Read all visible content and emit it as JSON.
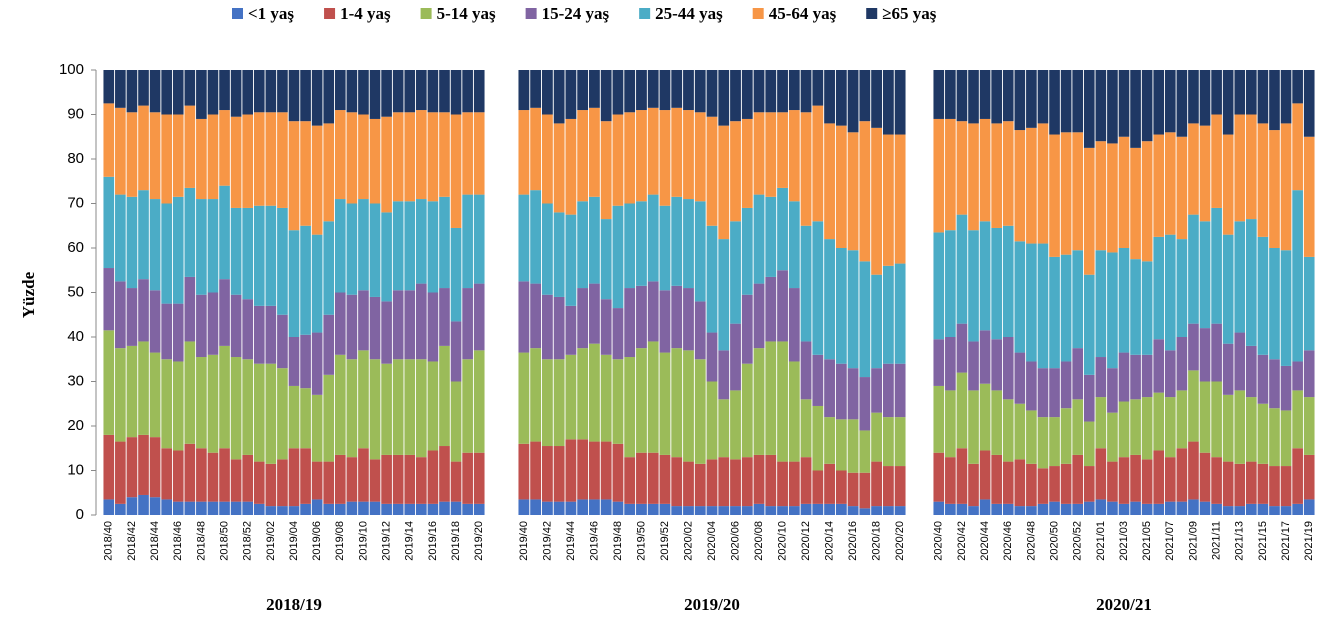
{
  "chart_data": [
    {
      "type": "stacked_bar",
      "title": "2018/19",
      "ylabel": "Yüzde",
      "ylim": [
        0,
        100
      ],
      "yticks": [
        0,
        10,
        20,
        30,
        40,
        50,
        60,
        70,
        80,
        90,
        100
      ],
      "categories": [
        "2018/40",
        null,
        "2018/42",
        null,
        "2018/44",
        null,
        "2018/46",
        null,
        "2018/48",
        null,
        "2018/50",
        null,
        "2018/52",
        null,
        "2019/02",
        null,
        "2019/04",
        null,
        "2019/06",
        null,
        "2019/08",
        null,
        "2019/10",
        null,
        "2019/12",
        null,
        "2019/14",
        null,
        "2019/16",
        null,
        "2019/18",
        null,
        "2019/20"
      ],
      "series": [
        {
          "name": "<1 yaş",
          "color": "#4472c4",
          "values": [
            3.5,
            2.5,
            4,
            4.5,
            4,
            3.5,
            3,
            3,
            3,
            3,
            3,
            3,
            3,
            2.5,
            2,
            2,
            2,
            2.5,
            3.5,
            2.5,
            2.5,
            3,
            3,
            3,
            2.5,
            2.5,
            2.5,
            2.5,
            2.5,
            3,
            3,
            2.5,
            2.5
          ]
        },
        {
          "name": "1-4 yaş",
          "color": "#c0504d",
          "values": [
            14.5,
            14,
            13.5,
            13.5,
            13.5,
            11.5,
            11.5,
            13,
            12,
            11,
            12,
            9.5,
            10.5,
            9.5,
            9.5,
            10.5,
            13,
            12.5,
            8.5,
            9.5,
            11,
            10,
            12,
            9.5,
            11,
            11,
            11,
            10.5,
            12,
            12.5,
            9,
            11.5,
            11.5
          ]
        },
        {
          "name": "5-14 yaş",
          "color": "#9bbb59",
          "values": [
            23.5,
            21,
            20.5,
            21,
            19,
            20,
            20,
            23,
            20.5,
            22,
            23,
            23,
            21.5,
            22,
            22.5,
            20.5,
            14,
            13.5,
            15,
            19.5,
            22.5,
            22,
            22,
            22.5,
            20.5,
            21.5,
            21.5,
            22,
            20,
            22.5,
            18,
            21,
            23
          ]
        },
        {
          "name": "15-24 yaş",
          "color": "#8064a2",
          "values": [
            14,
            15,
            13,
            14,
            14,
            12.5,
            13,
            14.5,
            14,
            14,
            15,
            14,
            13.5,
            13,
            13,
            12,
            11,
            12,
            14,
            13.5,
            14,
            14.5,
            13.5,
            14,
            14,
            15.5,
            15.5,
            17,
            15.5,
            13,
            13.5,
            16,
            15
          ]
        },
        {
          "name": "25-44 yaş",
          "color": "#4bacc6",
          "values": [
            20.5,
            19.5,
            20.5,
            20,
            20.5,
            22.5,
            24,
            20,
            21.5,
            21,
            21,
            19.5,
            20.5,
            22.5,
            22.5,
            24,
            24,
            24.5,
            22,
            21,
            21,
            20.5,
            20.5,
            21,
            20,
            20,
            20,
            19,
            20.5,
            20.5,
            21,
            21,
            20
          ]
        },
        {
          "name": "45-64 yaş",
          "color": "#f79646",
          "values": [
            16.5,
            19.5,
            19,
            19,
            19.5,
            20,
            18.5,
            18.5,
            18,
            19,
            17,
            20.5,
            21,
            21,
            21,
            21.5,
            24.5,
            23.5,
            24.5,
            22,
            20,
            20.5,
            19,
            19,
            21.5,
            20,
            20,
            20,
            20,
            19,
            25.5,
            18.5,
            18.5
          ]
        },
        {
          "name": "≥65 yaş",
          "color": "#1f3864",
          "values": [
            7.5,
            8.5,
            9.5,
            8,
            9.5,
            10,
            10,
            8,
            11,
            10,
            9,
            10.5,
            10,
            9.5,
            9.5,
            9.5,
            11.5,
            11.5,
            12.5,
            12,
            9,
            9.5,
            10,
            11,
            10.5,
            9.5,
            9.5,
            9,
            9.5,
            9.5,
            10,
            9.5,
            9.5
          ]
        }
      ]
    },
    {
      "type": "stacked_bar",
      "title": "2019/20",
      "categories": [
        "2019/40",
        null,
        "2019/42",
        null,
        "2019/44",
        null,
        "2019/46",
        null,
        "2019/48",
        null,
        "2019/50",
        null,
        "2019/52",
        null,
        "2020/02",
        null,
        "2020/04",
        null,
        "2020/06",
        null,
        "2020/08",
        null,
        "2020/10",
        null,
        "2020/12",
        null,
        "2020/14",
        null,
        "2020/16",
        null,
        "2020/18",
        null,
        "2020/20"
      ],
      "series": [
        {
          "values": [
            3.5,
            3.5,
            3,
            3,
            3,
            3.5,
            3.5,
            3.5,
            3,
            2.5,
            2.5,
            2.5,
            2.5,
            2,
            2,
            2,
            2,
            2,
            2,
            2,
            2.5,
            2,
            2,
            2,
            2.5,
            2.5,
            2.5,
            2.5,
            2,
            1.5,
            2,
            2,
            2
          ]
        },
        {
          "values": [
            12.5,
            13,
            12.5,
            12.5,
            14,
            13.5,
            13,
            13,
            13,
            10.5,
            11.5,
            11.5,
            11,
            11,
            10,
            9.5,
            10.5,
            11,
            10.5,
            11,
            11,
            11.5,
            10,
            10,
            10.5,
            7.5,
            9,
            7.5,
            7.5,
            8,
            10,
            9,
            9
          ]
        },
        {
          "values": [
            20.5,
            21,
            19.5,
            19.5,
            19,
            20.5,
            22,
            19.5,
            19,
            22.5,
            23.5,
            25,
            23,
            24.5,
            25,
            23.5,
            17.5,
            13,
            15.5,
            21,
            24,
            25.5,
            27,
            22.5,
            13,
            14.5,
            10.5,
            11.5,
            12,
            9.5,
            11,
            11,
            11
          ]
        },
        {
          "values": [
            16,
            14.5,
            14.5,
            14,
            11,
            13.5,
            13.5,
            12.5,
            11.5,
            15.5,
            14,
            13.5,
            14,
            14,
            14,
            13,
            11,
            11,
            15,
            15.5,
            14.5,
            14.5,
            16,
            16.5,
            13,
            11.5,
            13,
            12.5,
            11.5,
            12,
            10,
            12,
            12
          ]
        },
        {
          "values": [
            19.5,
            21,
            20.5,
            19,
            20.5,
            19.5,
            19.5,
            18,
            23,
            19,
            19,
            19.5,
            19,
            20,
            20,
            22.5,
            24,
            25,
            23,
            19.5,
            20,
            18,
            18.5,
            19.5,
            26,
            30,
            27,
            26,
            26.5,
            26,
            21,
            22,
            22.5
          ]
        },
        {
          "values": [
            19,
            18.5,
            20,
            20,
            21.5,
            20.5,
            20,
            22,
            20.5,
            20.5,
            20.5,
            19.5,
            21.5,
            20,
            20,
            20,
            24.5,
            25.5,
            22.5,
            20,
            18.5,
            19,
            17,
            20.5,
            25.5,
            26,
            26,
            27.5,
            26.5,
            31.5,
            33,
            29.5,
            29
          ]
        },
        {
          "values": [
            9,
            8.5,
            10,
            12,
            11,
            9,
            8.5,
            11.5,
            10,
            9.5,
            9,
            8.5,
            9,
            8.5,
            9,
            9.5,
            10.5,
            12.5,
            11.5,
            11,
            9.5,
            9.5,
            9.5,
            9,
            9.5,
            8,
            12,
            12.5,
            14,
            11.5,
            13,
            14.5,
            14.5
          ]
        }
      ]
    },
    {
      "type": "stacked_bar",
      "title": "2020/21",
      "categories": [
        "2020/40",
        null,
        "2020/42",
        null,
        "2020/44",
        null,
        "2020/46",
        null,
        "2020/48",
        null,
        "2020/50",
        null,
        "2020/52",
        null,
        "2021/01",
        null,
        "2021/03",
        null,
        "2021/05",
        null,
        "2021/07",
        null,
        "2021/09",
        null,
        "2021/11",
        null,
        "2021/13",
        null,
        "2021/15",
        null,
        "2021/17",
        null,
        "2021/19"
      ],
      "series": [
        {
          "values": [
            3,
            2.5,
            2.5,
            2,
            3.5,
            2.5,
            2.5,
            2,
            2,
            2.5,
            3,
            2.5,
            2.5,
            3,
            3.5,
            3,
            2.5,
            3,
            2.5,
            2.5,
            3,
            3,
            3.5,
            3,
            2.5,
            2,
            2,
            2.5,
            2.5,
            2,
            2,
            2.5,
            3.5
          ]
        },
        {
          "values": [
            11,
            10.5,
            12.5,
            9.5,
            11,
            11,
            9.5,
            10.5,
            9.5,
            8,
            8,
            9,
            11,
            8,
            11.5,
            9,
            10.5,
            10.5,
            10,
            12,
            10,
            12,
            13,
            11,
            10.5,
            10,
            9.5,
            9.5,
            9,
            9,
            9,
            12.5,
            10
          ]
        },
        {
          "values": [
            15,
            15,
            17,
            16.5,
            15,
            14.5,
            14,
            12.5,
            12,
            11.5,
            11,
            12.5,
            12.5,
            10,
            11.5,
            11,
            12.5,
            12.5,
            14,
            13,
            13.5,
            13,
            16,
            16,
            17,
            15,
            16.5,
            14.5,
            13.5,
            13,
            12.5,
            13,
            13
          ]
        },
        {
          "values": [
            10.5,
            12,
            11,
            11,
            12,
            11.5,
            14,
            11.5,
            11,
            11,
            11,
            10.5,
            11.5,
            10.5,
            9,
            10,
            11,
            10,
            9.5,
            12,
            10.5,
            12,
            10.5,
            12,
            13,
            11.5,
            13,
            11.5,
            11,
            11,
            10,
            6.5,
            10.5
          ]
        },
        {
          "values": [
            24,
            24,
            24.5,
            25,
            24.5,
            25,
            25,
            25,
            26.5,
            28,
            25,
            24,
            22,
            22.5,
            24,
            26,
            23.5,
            21.5,
            21,
            23,
            26,
            22,
            24.5,
            24,
            26,
            24.5,
            25,
            28.5,
            26.5,
            25,
            26,
            38.5,
            21
          ]
        },
        {
          "values": [
            25.5,
            25,
            21,
            24,
            23,
            23.5,
            23.5,
            25,
            26,
            27,
            27.5,
            27.5,
            26.5,
            28.5,
            24.5,
            24.5,
            25,
            25,
            27,
            23,
            23,
            23,
            20.5,
            21.5,
            21,
            22.5,
            24,
            23.5,
            25.5,
            26.5,
            28.5,
            19.5,
            27
          ]
        },
        {
          "values": [
            11,
            11,
            11.5,
            12,
            11,
            12,
            11.5,
            13.5,
            13,
            12,
            14.5,
            14,
            14,
            17.5,
            16,
            16.5,
            15,
            17.5,
            16,
            14.5,
            14,
            15,
            12,
            12.5,
            10,
            14.5,
            10,
            10,
            12,
            13.5,
            12,
            7.5,
            15
          ]
        }
      ]
    }
  ]
}
